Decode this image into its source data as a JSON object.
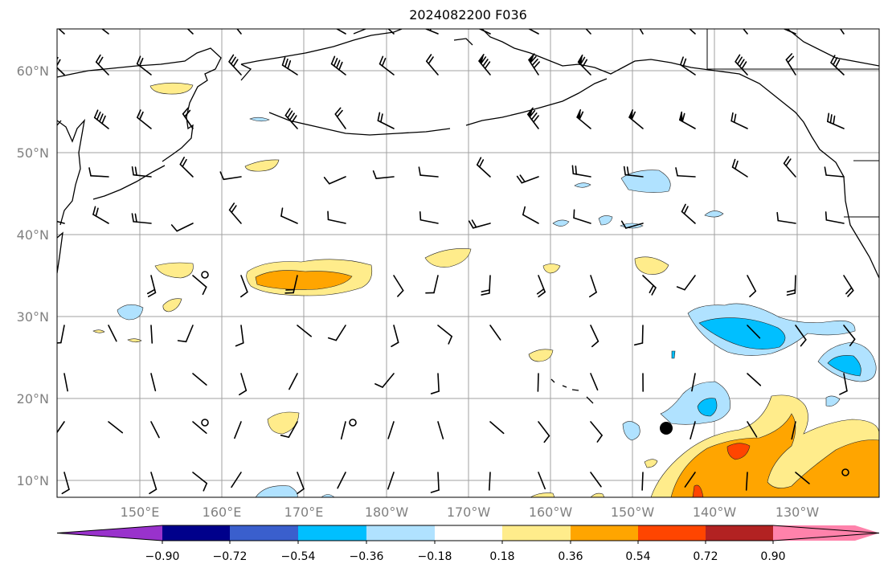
{
  "title": "2024082200 F036",
  "lat_ticks": [
    "60°N",
    "50°N",
    "40°N",
    "30°N",
    "20°N",
    "10°N"
  ],
  "lon_ticks": [
    "150°E",
    "160°E",
    "170°E",
    "180°W",
    "170°W",
    "160°W",
    "150°W",
    "140°W",
    "130°W"
  ],
  "colorbar": {
    "colors": [
      "#9932cc",
      "#00008b",
      "#3a5fcd",
      "#00bfff",
      "#b0e2ff",
      "#ffffff",
      "#ffec8b",
      "#ffa500",
      "#ff4500",
      "#b22222",
      "#ff82ab"
    ],
    "tick_labels": [
      "−0.90",
      "−0.72",
      "−0.54",
      "−0.36",
      "−0.18",
      "0.18",
      "0.36",
      "0.54",
      "0.72",
      "0.90"
    ]
  },
  "colors": {
    "coast": "#000000",
    "grid": "#a0a0a0",
    "tick_label": "#808080"
  }
}
